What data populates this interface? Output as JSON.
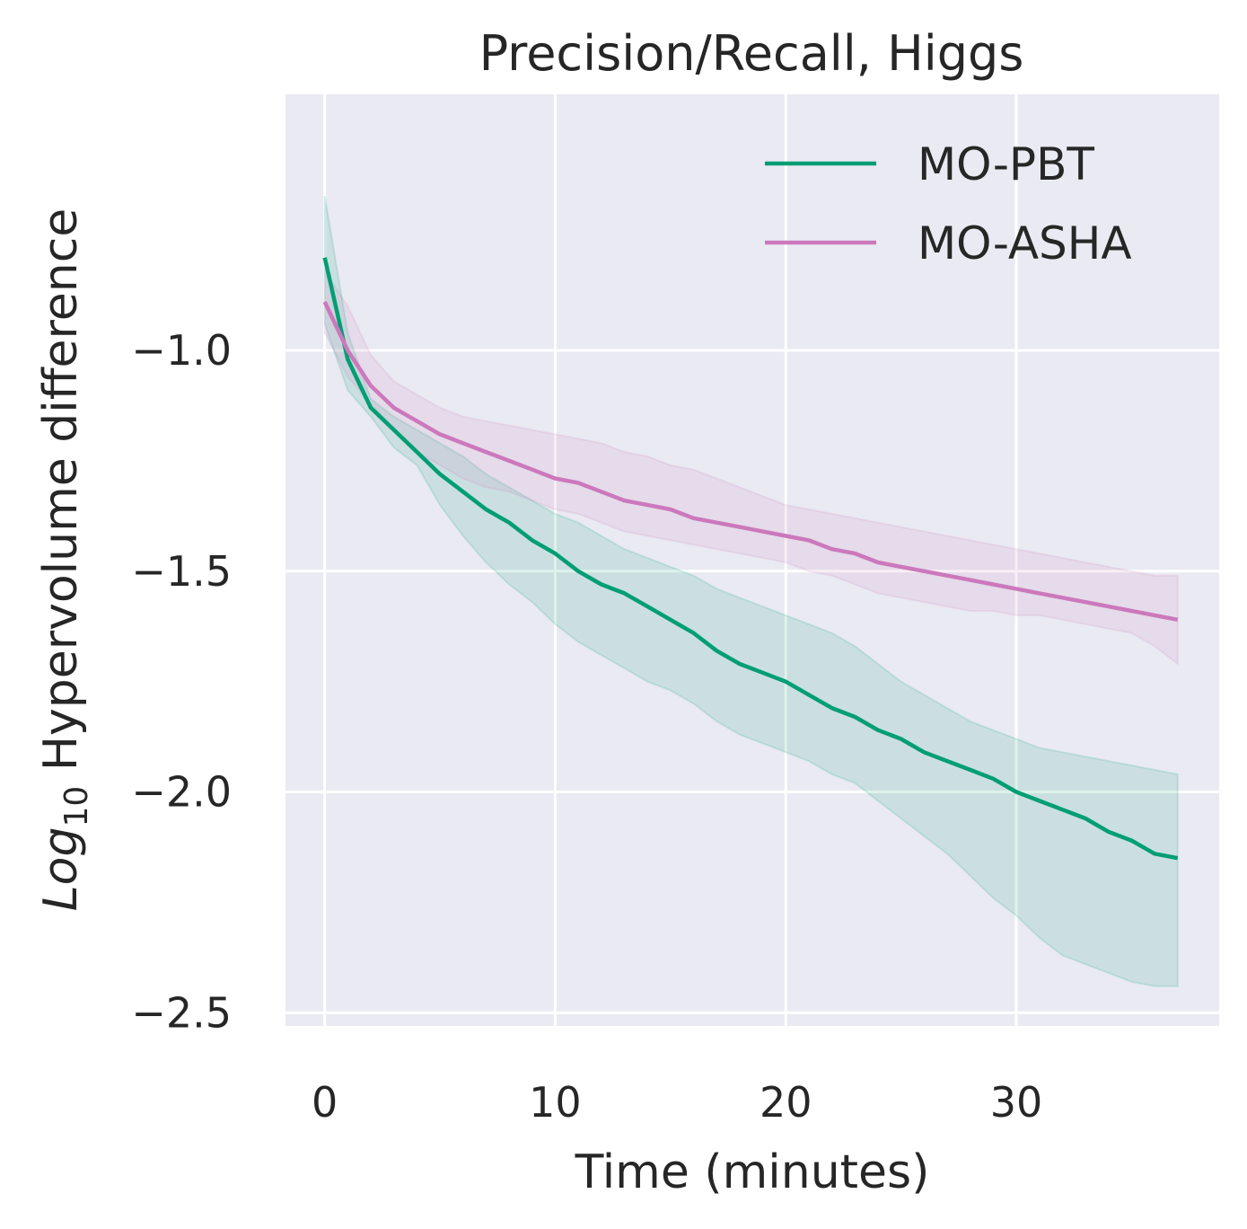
{
  "chart_data": {
    "type": "line",
    "title": "Precision/Recall, Higgs",
    "xlabel": "Time (minutes)",
    "ylabel_base": "Log",
    "ylabel_sub": "10",
    "ylabel_rest": " Hypervolume difference",
    "xlim": [
      -1.7,
      38.8
    ],
    "ylim": [
      -2.53,
      -0.42
    ],
    "xticks": [
      0,
      10,
      20,
      30
    ],
    "xtick_labels": [
      "0",
      "10",
      "20",
      "30"
    ],
    "yticks": [
      -1.0,
      -1.5,
      -2.0,
      -2.5
    ],
    "ytick_labels": [
      "−1.0",
      "−1.5",
      "−2.0",
      "−2.5"
    ],
    "grid": true,
    "background": "#eaeaf2",
    "legend_position": "top-right",
    "x": [
      0,
      1,
      2,
      3,
      4,
      5,
      6,
      7,
      8,
      9,
      10,
      11,
      12,
      13,
      14,
      15,
      16,
      17,
      18,
      19,
      20,
      21,
      22,
      23,
      24,
      25,
      26,
      27,
      28,
      29,
      30,
      31,
      32,
      33,
      34,
      35,
      36,
      37
    ],
    "series": [
      {
        "name": "MO-PBT",
        "color": "#009e73",
        "values": [
          -0.79,
          -1.02,
          -1.13,
          -1.18,
          -1.23,
          -1.28,
          -1.32,
          -1.36,
          -1.39,
          -1.43,
          -1.46,
          -1.5,
          -1.53,
          -1.55,
          -1.58,
          -1.61,
          -1.64,
          -1.68,
          -1.71,
          -1.73,
          -1.75,
          -1.78,
          -1.81,
          -1.83,
          -1.86,
          -1.88,
          -1.91,
          -1.93,
          -1.95,
          -1.97,
          -2.0,
          -2.02,
          -2.04,
          -2.06,
          -2.09,
          -2.11,
          -2.14,
          -2.15
        ],
        "lower": [
          -0.94,
          -1.09,
          -1.15,
          -1.22,
          -1.26,
          -1.35,
          -1.42,
          -1.48,
          -1.53,
          -1.57,
          -1.62,
          -1.66,
          -1.69,
          -1.72,
          -1.75,
          -1.77,
          -1.8,
          -1.84,
          -1.87,
          -1.89,
          -1.91,
          -1.93,
          -1.96,
          -1.98,
          -2.02,
          -2.06,
          -2.1,
          -2.14,
          -2.19,
          -2.24,
          -2.28,
          -2.33,
          -2.37,
          -2.39,
          -2.41,
          -2.43,
          -2.44,
          -2.44
        ],
        "upper": [
          -0.65,
          -0.96,
          -1.11,
          -1.15,
          -1.18,
          -1.21,
          -1.24,
          -1.28,
          -1.31,
          -1.34,
          -1.37,
          -1.39,
          -1.42,
          -1.45,
          -1.47,
          -1.49,
          -1.51,
          -1.54,
          -1.56,
          -1.58,
          -1.6,
          -1.62,
          -1.64,
          -1.67,
          -1.71,
          -1.75,
          -1.78,
          -1.81,
          -1.84,
          -1.86,
          -1.88,
          -1.9,
          -1.91,
          -1.92,
          -1.93,
          -1.94,
          -1.95,
          -1.96
        ]
      },
      {
        "name": "MO-ASHA",
        "color": "#cc78bc",
        "values": [
          -0.89,
          -1.0,
          -1.08,
          -1.13,
          -1.16,
          -1.19,
          -1.21,
          -1.23,
          -1.25,
          -1.27,
          -1.29,
          -1.3,
          -1.32,
          -1.34,
          -1.35,
          -1.36,
          -1.38,
          -1.39,
          -1.4,
          -1.41,
          -1.42,
          -1.43,
          -1.45,
          -1.46,
          -1.48,
          -1.49,
          -1.5,
          -1.51,
          -1.52,
          -1.53,
          -1.54,
          -1.55,
          -1.56,
          -1.57,
          -1.58,
          -1.59,
          -1.6,
          -1.61
        ],
        "lower": [
          -0.96,
          -1.06,
          -1.12,
          -1.18,
          -1.23,
          -1.26,
          -1.29,
          -1.31,
          -1.32,
          -1.34,
          -1.36,
          -1.37,
          -1.39,
          -1.41,
          -1.42,
          -1.43,
          -1.44,
          -1.45,
          -1.46,
          -1.47,
          -1.48,
          -1.5,
          -1.51,
          -1.53,
          -1.55,
          -1.56,
          -1.57,
          -1.58,
          -1.59,
          -1.59,
          -1.6,
          -1.6,
          -1.61,
          -1.62,
          -1.63,
          -1.64,
          -1.67,
          -1.71
        ],
        "upper": [
          -0.82,
          -0.9,
          -1.01,
          -1.07,
          -1.1,
          -1.13,
          -1.15,
          -1.16,
          -1.17,
          -1.18,
          -1.19,
          -1.2,
          -1.21,
          -1.23,
          -1.24,
          -1.26,
          -1.27,
          -1.29,
          -1.31,
          -1.33,
          -1.35,
          -1.36,
          -1.37,
          -1.38,
          -1.39,
          -1.4,
          -1.41,
          -1.42,
          -1.43,
          -1.44,
          -1.45,
          -1.46,
          -1.47,
          -1.48,
          -1.49,
          -1.5,
          -1.51,
          -1.51
        ]
      }
    ]
  }
}
